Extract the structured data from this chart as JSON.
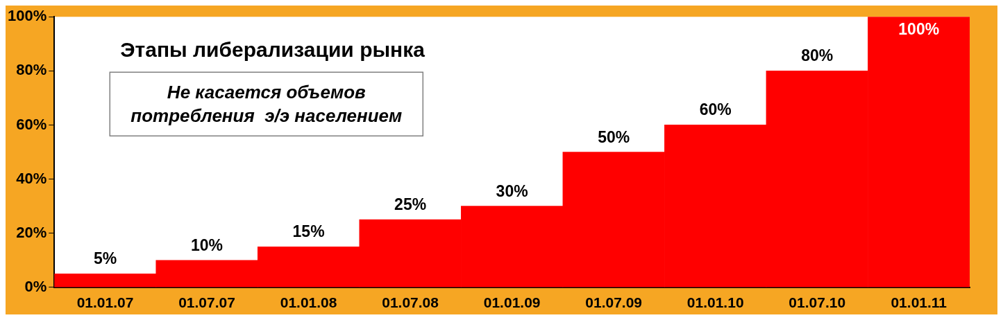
{
  "chart_data": {
    "type": "bar",
    "title": "Этапы либерализации рынка",
    "annotations": [
      "Не касается объемов\nпотребления  э/э населением"
    ],
    "categories": [
      "01.01.07",
      "01.07.07",
      "01.01.08",
      "01.07.08",
      "01.01.09",
      "01.07.09",
      "01.01.10",
      "01.07.10",
      "01.01.11"
    ],
    "values": [
      5,
      10,
      15,
      25,
      30,
      50,
      60,
      80,
      100
    ],
    "value_labels": [
      "5%",
      "10%",
      "15%",
      "25%",
      "30%",
      "50%",
      "60%",
      "80%",
      "100%"
    ],
    "color": "#ff0000",
    "ylim": [
      0,
      100
    ],
    "yticks": [
      {
        "value": 0,
        "label": "0%"
      },
      {
        "value": 20,
        "label": "20%"
      },
      {
        "value": 40,
        "label": "40%"
      },
      {
        "value": 60,
        "label": "60%"
      },
      {
        "value": 80,
        "label": "80%"
      },
      {
        "value": 100,
        "label": "100%"
      }
    ],
    "grid": false,
    "legend": false
  }
}
